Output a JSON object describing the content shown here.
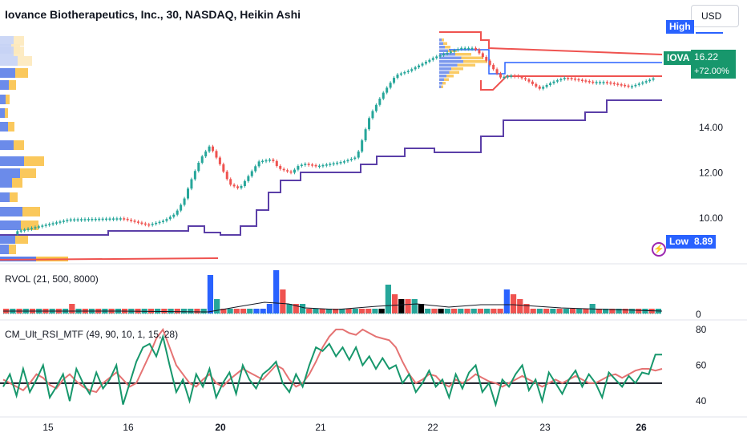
{
  "header": {
    "title": "Iovance Biotherapeutics, Inc., 30, NASDAQ, Heikin Ashi"
  },
  "currency": {
    "label": "USD"
  },
  "price_tags": {
    "high_label": "High",
    "low_label": "Low",
    "low_value": "8.89",
    "symbol": "IOVA",
    "last_price": "16.22",
    "change": "+72.00%"
  },
  "colors": {
    "up": "#26a69a",
    "down": "#ef5350",
    "purple": "#5b3fa8",
    "blue": "#2962ff",
    "vp_blue": "#5b7ee8",
    "vp_orange": "#f9c24a",
    "rsi_red": "#e57373",
    "rsi_green": "#17976c"
  },
  "panels": {
    "rvol_label": "RVOL (21, 500, 8000)",
    "rsi_label": "CM_Ult_RSI_MTF (49, 90, 10, 1, 15, 28)"
  },
  "chart_data": [
    {
      "type": "candlestick",
      "name": "Price (Heikin Ashi, 30m)",
      "x_ticks": [
        "15",
        "16",
        "20",
        "21",
        "22",
        "23",
        "26"
      ],
      "y_ticks": [
        "14.00",
        "12.00",
        "10.00"
      ],
      "ylim": [
        8.1,
        18.2
      ],
      "series": [
        {
          "name": "Price",
          "x": [
            0,
            0.1,
            0.18,
            0.22,
            0.245,
            0.262,
            0.275,
            0.285,
            0.3,
            0.315,
            0.33,
            0.345,
            0.36,
            0.375,
            0.39,
            0.41,
            0.42,
            0.44,
            0.45,
            0.46,
            0.47,
            0.48,
            0.5,
            0.52,
            0.54,
            0.56,
            0.58,
            0.6,
            0.62,
            0.64,
            0.66,
            0.68,
            0.7,
            0.72,
            0.74,
            0.76,
            0.78,
            0.8,
            0.82,
            0.84,
            0.86,
            0.88,
            0.9,
            0.92,
            0.94,
            0.96,
            0.98,
            1
          ],
          "y": [
            9.3,
            9.95,
            10.0,
            9.7,
            9.9,
            10.2,
            10.8,
            11.6,
            12.6,
            13.2,
            12.4,
            11.5,
            11.3,
            11.9,
            12.5,
            12.6,
            12.2,
            12.0,
            12.3,
            12.4,
            12.35,
            12.3,
            12.4,
            12.5,
            12.7,
            14.5,
            15.5,
            16.3,
            16.5,
            16.8,
            17.1,
            17.3,
            17.5,
            17.5,
            16.9,
            16.2,
            16.3,
            16.1,
            15.7,
            16.0,
            16.2,
            16.1,
            16.0,
            16.0,
            15.9,
            15.8,
            16.0,
            16.22
          ]
        }
      ]
    },
    {
      "type": "histogram",
      "name": "RVOL",
      "y_ticks": [
        "0"
      ],
      "values": [
        1,
        1,
        1,
        1,
        1,
        1,
        1,
        1,
        1,
        1,
        2,
        1,
        1,
        1,
        1,
        1,
        1,
        1,
        1,
        1,
        1,
        1,
        1,
        1,
        1,
        1,
        1,
        1,
        1,
        1,
        1,
        8,
        3,
        1,
        1,
        1,
        1,
        1,
        1,
        1,
        2,
        9,
        5,
        2,
        2,
        2,
        1,
        1,
        1,
        1,
        1,
        1,
        1,
        1,
        1,
        1,
        1,
        1,
        6,
        4,
        3,
        3,
        3,
        2,
        1,
        1,
        1,
        1,
        1,
        1,
        1,
        1,
        1,
        1,
        1,
        1,
        5,
        4,
        3,
        2,
        1,
        1,
        1,
        1,
        1,
        1,
        1,
        1,
        1,
        2,
        1,
        1,
        1,
        1,
        1,
        1,
        1,
        1,
        1,
        1
      ]
    },
    {
      "type": "line",
      "name": "CM_Ult_RSI_MTF",
      "y_ticks": [
        "80",
        "60",
        "40"
      ],
      "ylim": [
        32,
        84
      ],
      "series": [
        {
          "name": "RSI fast",
          "values": [
            52,
            50,
            48,
            46,
            50,
            55,
            53,
            49,
            47,
            52,
            55,
            51,
            48,
            46,
            45,
            50,
            53,
            56,
            52,
            48,
            50,
            58,
            66,
            75,
            80,
            70,
            60,
            55,
            50,
            48,
            52,
            55,
            50,
            48,
            52,
            55,
            58,
            56,
            54,
            52,
            56,
            60,
            58,
            52,
            48,
            50,
            55,
            62,
            70,
            76,
            80,
            80,
            78,
            77,
            80,
            78,
            76,
            75,
            74,
            70,
            62,
            55,
            50,
            52,
            55,
            54,
            50,
            48,
            52,
            50,
            52,
            55,
            53,
            51,
            50,
            48,
            50,
            52,
            54,
            52,
            50,
            48,
            50,
            52,
            50,
            52,
            54,
            52,
            50,
            50,
            52,
            54,
            55,
            53,
            55,
            57,
            58,
            58,
            57,
            58
          ]
        },
        {
          "name": "RSI slow",
          "values": [
            48,
            55,
            43,
            58,
            45,
            52,
            60,
            42,
            48,
            55,
            40,
            58,
            50,
            44,
            56,
            47,
            52,
            60,
            38,
            50,
            62,
            70,
            72,
            65,
            76,
            60,
            45,
            52,
            40,
            55,
            48,
            58,
            42,
            50,
            56,
            44,
            60,
            52,
            47,
            55,
            58,
            62,
            50,
            45,
            55,
            48,
            60,
            70,
            68,
            72,
            65,
            70,
            63,
            70,
            60,
            65,
            58,
            64,
            58,
            60,
            50,
            55,
            45,
            50,
            57,
            48,
            52,
            42,
            55,
            47,
            56,
            60,
            45,
            50,
            38,
            52,
            48,
            55,
            60,
            46,
            52,
            40,
            56,
            50,
            44,
            52,
            57,
            48,
            55,
            50,
            42,
            56,
            52,
            48,
            54,
            50,
            56,
            55,
            66,
            66
          ]
        }
      ]
    }
  ]
}
